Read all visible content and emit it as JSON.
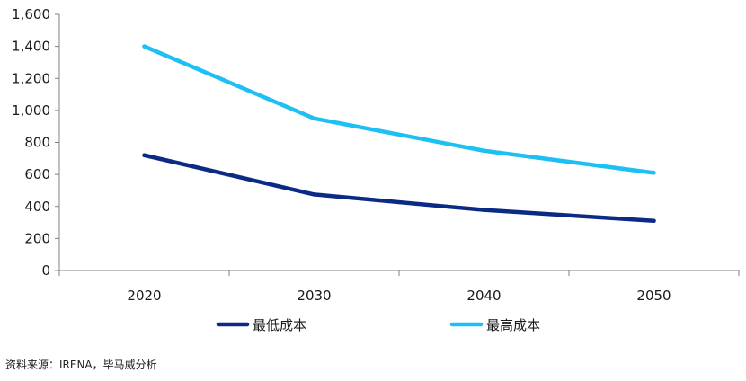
{
  "chart_data": {
    "type": "line",
    "categories": [
      "2020",
      "2030",
      "2040",
      "2050"
    ],
    "series": [
      {
        "name": "最低成本",
        "values": [
          720,
          475,
          378,
          310
        ],
        "color": "#0b2a83"
      },
      {
        "name": "最高成本",
        "values": [
          1400,
          950,
          748,
          610
        ],
        "color": "#1ec0f3"
      }
    ],
    "ylim": [
      0,
      1600
    ],
    "yticks": [
      0,
      200,
      400,
      600,
      800,
      1000,
      1200,
      1400,
      1600
    ],
    "ytick_labels": [
      "0",
      "200",
      "400",
      "600",
      "800",
      "1,000",
      "1,200",
      "1,400",
      "1,600"
    ],
    "grid": false,
    "legend_position": "bottom",
    "title": "",
    "xlabel": "",
    "ylabel": ""
  },
  "source_note": "资料来源：IRENA，毕马威分析"
}
